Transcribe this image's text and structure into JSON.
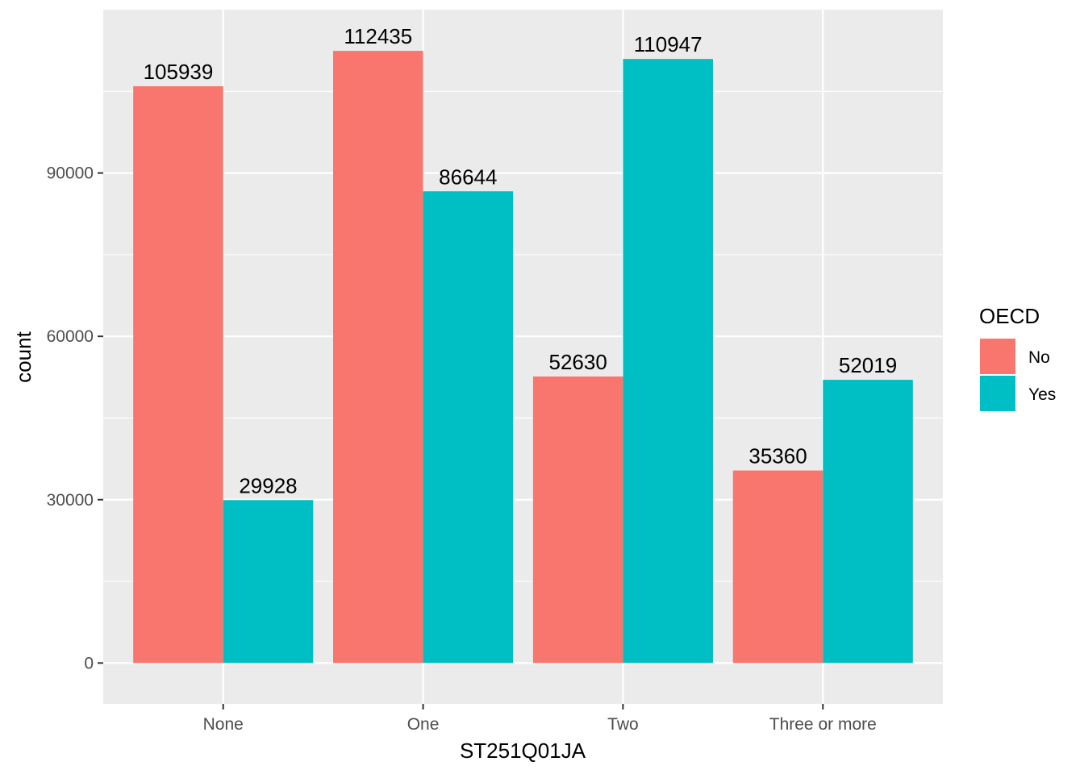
{
  "chart_data": {
    "type": "bar",
    "categories": [
      "None",
      "One",
      "Two",
      "Three or more"
    ],
    "series": [
      {
        "name": "No",
        "values": [
          105939,
          112435,
          52630,
          35360
        ]
      },
      {
        "name": "Yes",
        "values": [
          29928,
          86644,
          110947,
          52019
        ]
      }
    ],
    "xlabel": "ST251Q01JA",
    "ylabel": "count",
    "ylim": [
      -7500,
      120000
    ],
    "yticks": [
      0,
      30000,
      60000,
      90000
    ],
    "yticks_labels": [
      "0",
      "30000",
      "60000",
      "90000"
    ],
    "grid": true,
    "legend": {
      "title": "OECD",
      "position": "right"
    }
  },
  "colors": {
    "No": "#F8766D",
    "Yes": "#00BFC4",
    "panel": "#EBEBEB",
    "grid": "#FFFFFF"
  }
}
